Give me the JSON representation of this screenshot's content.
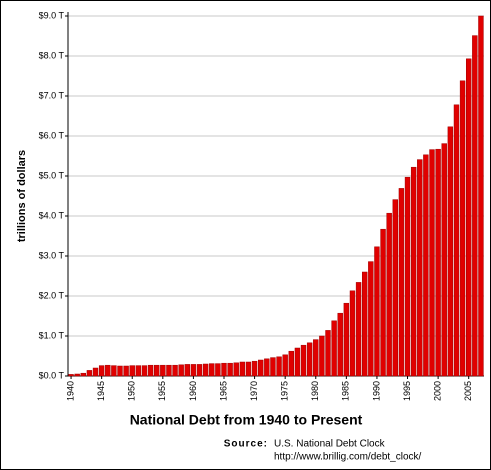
{
  "chart_data": {
    "type": "bar",
    "title": "National Debt from 1940 to Present",
    "y_label": "trillions of dollars",
    "source_label": "Source:",
    "source_name": "U.S. National Debt Clock",
    "source_url": "http://www.brillig.com/debt_clock/",
    "color": "#e00000",
    "grid": true,
    "categories": [
      "1940",
      null,
      null,
      null,
      null,
      "1945",
      null,
      null,
      null,
      null,
      "1950",
      null,
      null,
      null,
      null,
      "1955",
      null,
      null,
      null,
      null,
      "1960",
      null,
      null,
      null,
      null,
      "1965",
      null,
      null,
      null,
      null,
      "1970",
      null,
      null,
      null,
      null,
      "1975",
      null,
      null,
      null,
      null,
      "1980",
      null,
      null,
      null,
      null,
      "1985",
      null,
      null,
      null,
      null,
      "1990",
      null,
      null,
      null,
      null,
      "1995",
      null,
      null,
      null,
      null,
      "2000",
      null,
      null,
      null,
      null,
      "2005",
      null,
      null
    ],
    "values": [
      0.04,
      0.05,
      0.07,
      0.14,
      0.2,
      0.26,
      0.27,
      0.26,
      0.25,
      0.25,
      0.26,
      0.26,
      0.26,
      0.27,
      0.27,
      0.27,
      0.27,
      0.27,
      0.28,
      0.29,
      0.29,
      0.29,
      0.3,
      0.31,
      0.31,
      0.32,
      0.32,
      0.33,
      0.35,
      0.35,
      0.37,
      0.4,
      0.43,
      0.46,
      0.48,
      0.53,
      0.62,
      0.7,
      0.77,
      0.83,
      0.91,
      1.0,
      1.14,
      1.38,
      1.57,
      1.82,
      2.13,
      2.34,
      2.6,
      2.86,
      3.23,
      3.67,
      4.07,
      4.41,
      4.69,
      4.97,
      5.22,
      5.41,
      5.53,
      5.66,
      5.67,
      5.81,
      6.23,
      6.78,
      7.38,
      7.93,
      8.51,
      9.0
    ],
    "ylim": [
      0,
      9
    ],
    "yticks": [
      {
        "value": 0,
        "label": "$0.0 T"
      },
      {
        "value": 1,
        "label": "$1.0 T"
      },
      {
        "value": 2,
        "label": "$2.0 T"
      },
      {
        "value": 3,
        "label": "$3.0 T"
      },
      {
        "value": 4,
        "label": "$4.0 T"
      },
      {
        "value": 5,
        "label": "$5.0 T"
      },
      {
        "value": 6,
        "label": "$6.0 T"
      },
      {
        "value": 7,
        "label": "$7.0 T"
      },
      {
        "value": 8,
        "label": "$8.0 T"
      },
      {
        "value": 9,
        "label": "$9.0 T"
      }
    ]
  }
}
